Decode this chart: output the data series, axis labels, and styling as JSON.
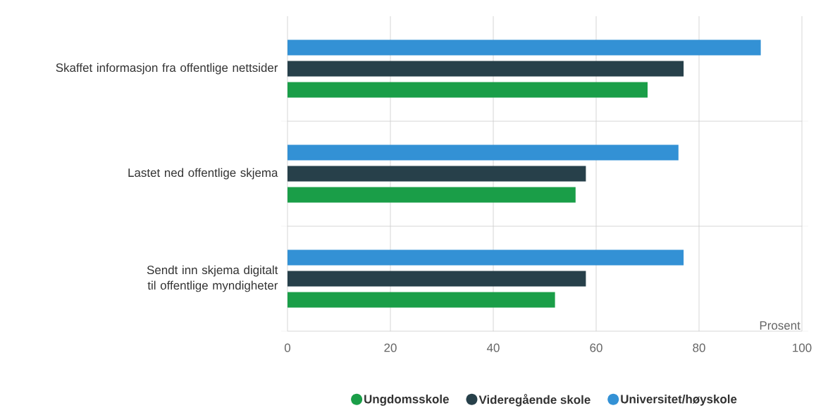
{
  "chart_data": {
    "type": "bar",
    "orientation": "horizontal",
    "xlabel": "Prosent",
    "categories": [
      "Skaffet informasjon fra offentlige nettsider",
      "Lastet ned offentlige skjema",
      "Sendt inn skjema digitalt til offentlige myndigheter"
    ],
    "series": [
      {
        "name": "Ungdomsskole",
        "color": "#1a9e48",
        "values": [
          70,
          56,
          52
        ]
      },
      {
        "name": "Videregående skole",
        "color": "#27404a",
        "values": [
          77,
          58,
          58
        ]
      },
      {
        "name": "Universitet/høyskole",
        "color": "#3391d5",
        "values": [
          92,
          76,
          77
        ]
      }
    ],
    "xlim": [
      0,
      100
    ],
    "xticks": [
      0,
      20,
      40,
      60,
      80,
      100
    ],
    "grid": true,
    "legend": "bottom"
  }
}
